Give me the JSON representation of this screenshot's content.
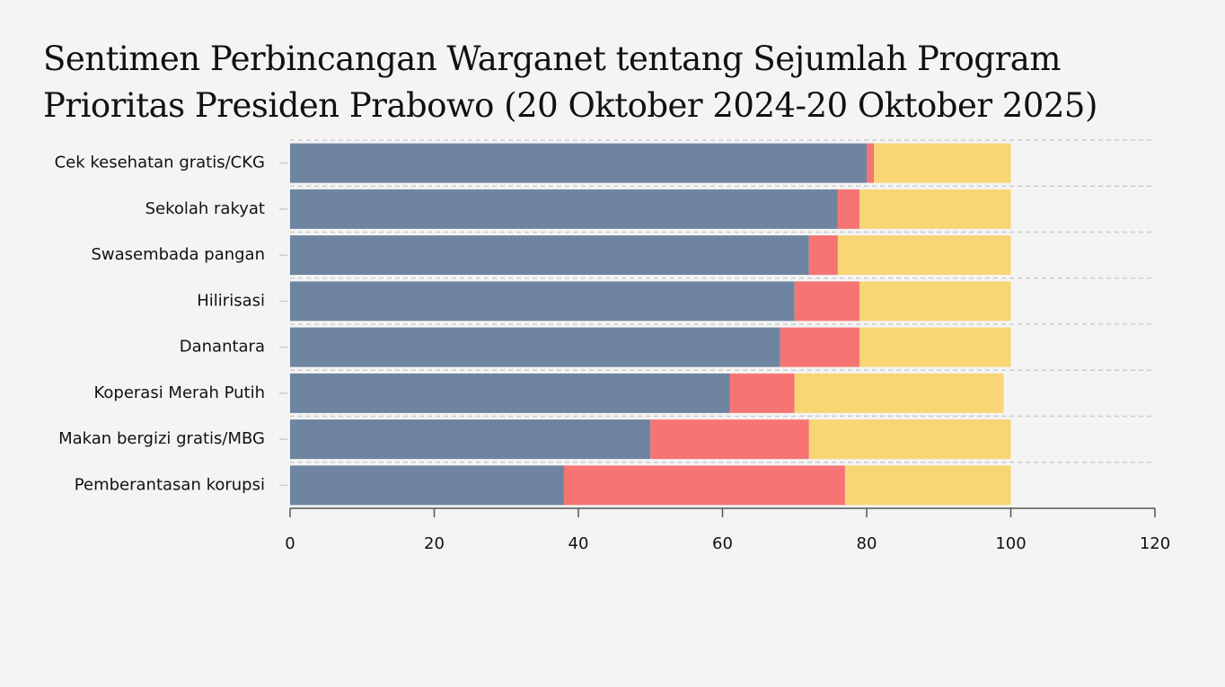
{
  "chart_data": {
    "type": "stacked-barh",
    "title": "Sentimen Perbincangan Warganet tentang Sejumlah Program Prioritas Presiden Prabowo (20 Oktober 2024-20 Oktober 2025)",
    "categories": [
      "Cek kesehatan gratis/CKG",
      "Sekolah rakyat",
      "Swasembada pangan",
      "Hilirisasi",
      "Danantara",
      "Koperasi Merah Putih",
      "Makan bergizi gratis/MBG",
      "Pemberantasan korupsi"
    ],
    "series": [
      {
        "color": "#6e84a0",
        "values": [
          80,
          76,
          72,
          70,
          68,
          61,
          50,
          38
        ]
      },
      {
        "color": "#f77474",
        "values": [
          1,
          3,
          4,
          9,
          11,
          9,
          22,
          39
        ]
      },
      {
        "color": "#f9d675",
        "values": [
          19,
          21,
          24,
          21,
          21,
          29,
          28,
          23
        ]
      }
    ],
    "xlim": [
      0,
      120
    ],
    "xticks": [
      0,
      20,
      40,
      60,
      80,
      100,
      120
    ]
  }
}
